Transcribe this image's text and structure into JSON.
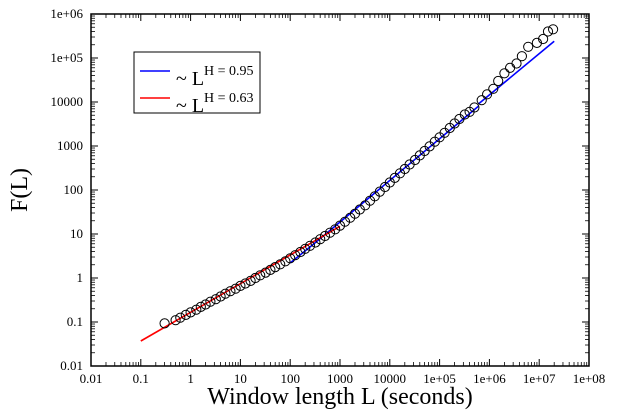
{
  "chart_data": {
    "type": "scatter",
    "xlabel": "Window length L (seconds)",
    "ylabel": "F(L)",
    "xscale": "log",
    "yscale": "log",
    "xlim": [
      0.01,
      100000000
    ],
    "ylim": [
      0.01,
      1000000
    ],
    "x_tick_labels": [
      "0.01",
      "0.1",
      "1",
      "10",
      "100",
      "1000",
      "10000",
      "1e+05",
      "1e+06",
      "1e+07",
      "1e+08"
    ],
    "y_tick_labels": [
      "0.01",
      "0.1",
      "1",
      "10",
      "100",
      "1000",
      "10000",
      "1e+05",
      "1e+06"
    ],
    "grid": false,
    "legend_position": "top-left",
    "legend": [
      {
        "prefix": "~ L",
        "exponent": "H = 0.95",
        "color": "#0000ff"
      },
      {
        "prefix": "~ L",
        "exponent": "H = 0.63",
        "color": "#ff0000"
      }
    ],
    "series": [
      {
        "kind": "markers",
        "marker": "open-circle",
        "color": "#000000",
        "points": [
          [
            0.3,
            0.093
          ],
          [
            0.5,
            0.11
          ],
          [
            0.62,
            0.125
          ],
          [
            0.8,
            0.145
          ],
          [
            1.0,
            0.165
          ],
          [
            1.3,
            0.19
          ],
          [
            1.6,
            0.22
          ],
          [
            2.0,
            0.25
          ],
          [
            2.5,
            0.29
          ],
          [
            3.2,
            0.33
          ],
          [
            4.0,
            0.38
          ],
          [
            5.0,
            0.44
          ],
          [
            6.3,
            0.5
          ],
          [
            8.0,
            0.57
          ],
          [
            10.0,
            0.66
          ],
          [
            12.6,
            0.75
          ],
          [
            16.0,
            0.86
          ],
          [
            20.0,
            1.0
          ],
          [
            25.0,
            1.15
          ],
          [
            32.0,
            1.33
          ],
          [
            40.0,
            1.53
          ],
          [
            50.0,
            1.77
          ],
          [
            63.0,
            2.05
          ],
          [
            80.0,
            2.4
          ],
          [
            100.0,
            2.8
          ],
          [
            126.0,
            3.3
          ],
          [
            160.0,
            3.9
          ],
          [
            200.0,
            4.6
          ],
          [
            250.0,
            5.4
          ],
          [
            320.0,
            6.4
          ],
          [
            400.0,
            7.6
          ],
          [
            500.0,
            9.0
          ],
          [
            630.0,
            10.7
          ],
          [
            800.0,
            12.8
          ],
          [
            1000.0,
            15.5
          ],
          [
            1260.0,
            19.0
          ],
          [
            1600.0,
            23.5
          ],
          [
            2000.0,
            29.0
          ],
          [
            2500.0,
            36.0
          ],
          [
            3200.0,
            45.0
          ],
          [
            4000.0,
            57.0
          ],
          [
            5000.0,
            72.0
          ],
          [
            6300.0,
            92.0
          ],
          [
            8000.0,
            117.0
          ],
          [
            10000.0,
            148.0
          ],
          [
            12600.0,
            188.0
          ],
          [
            16000.0,
            240.0
          ],
          [
            20000.0,
            300.0
          ],
          [
            25000.0,
            380.0
          ],
          [
            32000.0,
            480.0
          ],
          [
            40000.0,
            610.0
          ],
          [
            50000.0,
            770.0
          ],
          [
            63000.0,
            980.0
          ],
          [
            80000.0,
            1250.0
          ],
          [
            100000.0,
            1580.0
          ],
          [
            126000.0,
            2000.0
          ],
          [
            160000.0,
            2560.0
          ],
          [
            200000.0,
            3250.0
          ],
          [
            250000.0,
            4100.0
          ],
          [
            320000.0,
            5200.0
          ],
          [
            400000.0,
            6000.0
          ],
          [
            500000.0,
            7500.0
          ],
          [
            700000.0,
            11000.0
          ],
          [
            900000.0,
            15000.0
          ],
          [
            1200000.0,
            20000.0
          ],
          [
            1500000.0,
            30000.0
          ],
          [
            2000000.0,
            45000.0
          ],
          [
            2600000.0,
            60000.0
          ],
          [
            3500000.0,
            75000.0
          ],
          [
            4500000.0,
            110000.0
          ],
          [
            6000000.0,
            180000.0
          ],
          [
            9000000.0,
            220000.0
          ],
          [
            12000000.0,
            270000.0
          ],
          [
            15000000.0,
            400000.0
          ],
          [
            19000000.0,
            450000.0
          ]
        ]
      },
      {
        "kind": "line",
        "label": "H = 0.95",
        "color": "#0000ff",
        "segments": [
          [
            [
              100,
              2.2
            ],
            [
              300,
              6.0
            ],
            [
              600000,
              8000
            ]
          ],
          [
            [
              600000,
              9000
            ],
            [
              20000000,
              240000
            ]
          ]
        ]
      },
      {
        "kind": "line",
        "label": "H = 0.63",
        "color": "#ff0000",
        "segments": [
          [
            [
              0.1,
              0.037
            ],
            [
              1000,
              15.0
            ]
          ]
        ]
      }
    ]
  }
}
